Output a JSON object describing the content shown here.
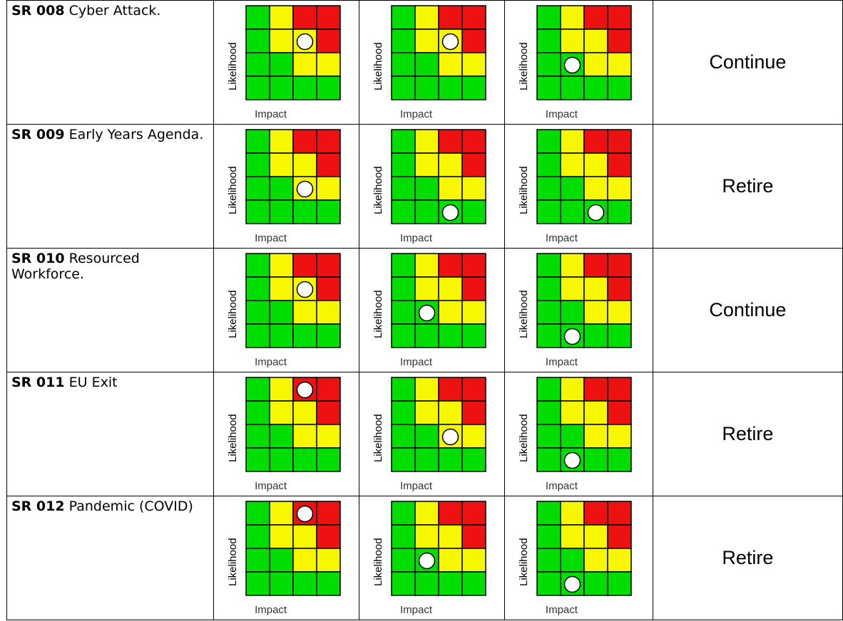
{
  "axis_labels": {
    "likelihood": "Likelihood",
    "impact": "Impact"
  },
  "colors": {
    "green": "#00dd00",
    "yellow": "#f7f700",
    "red": "#ee1111",
    "marker": "#ffffff"
  },
  "grid_pattern": [
    [
      "green",
      "yellow",
      "red",
      "red"
    ],
    [
      "green",
      "yellow",
      "yellow",
      "red"
    ],
    [
      "green",
      "green",
      "yellow",
      "yellow"
    ],
    [
      "green",
      "green",
      "green",
      "green"
    ]
  ],
  "risks": [
    {
      "code": "SR 008",
      "title": "Cyber Attack.",
      "outcome": "Continue",
      "matrices": [
        {
          "row": 1,
          "col": 2
        },
        {
          "row": 1,
          "col": 2
        },
        {
          "row": 2,
          "col": 1
        }
      ]
    },
    {
      "code": "SR 009",
      "title": "Early Years Agenda.",
      "outcome": "Retire",
      "matrices": [
        {
          "row": 2,
          "col": 2
        },
        {
          "row": 3,
          "col": 2
        },
        {
          "row": 3,
          "col": 2
        }
      ]
    },
    {
      "code": "SR 010",
      "title": "Resourced Workforce.",
      "outcome": "Continue",
      "matrices": [
        {
          "row": 1,
          "col": 2
        },
        {
          "row": 2,
          "col": 1
        },
        {
          "row": 3,
          "col": 1
        }
      ]
    },
    {
      "code": "SR 011",
      "title": "EU Exit",
      "outcome": "Retire",
      "matrices": [
        {
          "row": 0,
          "col": 2
        },
        {
          "row": 2,
          "col": 2
        },
        {
          "row": 3,
          "col": 1
        }
      ]
    },
    {
      "code": "SR 012",
      "title": "Pandemic (COVID)",
      "outcome": "Retire",
      "matrices": [
        {
          "row": 0,
          "col": 2
        },
        {
          "row": 2,
          "col": 1
        },
        {
          "row": 3,
          "col": 1
        }
      ]
    }
  ]
}
